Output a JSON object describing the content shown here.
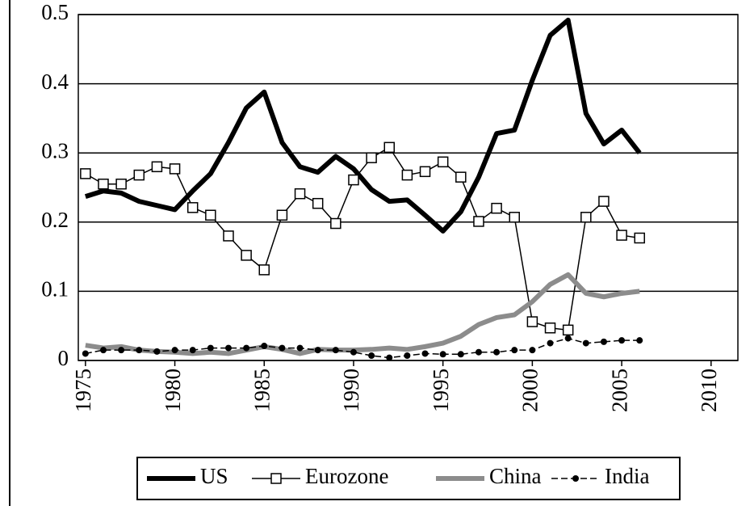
{
  "chart_data": {
    "type": "line",
    "x": [
      1975,
      1976,
      1977,
      1978,
      1979,
      1980,
      1981,
      1982,
      1983,
      1984,
      1985,
      1986,
      1987,
      1988,
      1989,
      1990,
      1991,
      1992,
      1993,
      1994,
      1995,
      1996,
      1997,
      1998,
      1999,
      2000,
      2001,
      2002,
      2003,
      2004,
      2005,
      2006
    ],
    "series": [
      {
        "name": "US",
        "color": "#000000",
        "marker": "none",
        "width": 6,
        "values": [
          0.237,
          0.245,
          0.242,
          0.23,
          0.224,
          0.218,
          0.245,
          0.27,
          0.315,
          0.365,
          0.388,
          0.315,
          0.28,
          0.272,
          0.295,
          0.277,
          0.247,
          0.23,
          0.232,
          0.21,
          0.187,
          0.215,
          0.265,
          0.328,
          0.333,
          0.405,
          0.47,
          0.492,
          0.357,
          0.313,
          0.333,
          0.3
        ]
      },
      {
        "name": "Eurozone",
        "color": "#000000",
        "marker": "square",
        "width": 1.5,
        "values": [
          0.27,
          0.255,
          0.255,
          0.268,
          0.28,
          0.277,
          0.221,
          0.21,
          0.18,
          0.152,
          0.131,
          0.21,
          0.241,
          0.227,
          0.198,
          0.261,
          0.293,
          0.308,
          0.268,
          0.273,
          0.287,
          0.265,
          0.201,
          0.22,
          0.207,
          0.056,
          0.047,
          0.044,
          0.207,
          0.23,
          0.181,
          0.177
        ]
      },
      {
        "name": "China",
        "color": "#8c8c8c",
        "marker": "none",
        "width": 6,
        "values": [
          0.022,
          0.018,
          0.02,
          0.015,
          0.013,
          0.012,
          0.01,
          0.012,
          0.01,
          0.015,
          0.02,
          0.016,
          0.01,
          0.016,
          0.015,
          0.015,
          0.016,
          0.018,
          0.016,
          0.02,
          0.025,
          0.035,
          0.052,
          0.062,
          0.066,
          0.085,
          0.11,
          0.124,
          0.097,
          0.092,
          0.097,
          0.1
        ]
      },
      {
        "name": "India",
        "color": "#000000",
        "marker": "dot",
        "width": 1.5,
        "dash": "8 4",
        "values": [
          0.01,
          0.015,
          0.015,
          0.015,
          0.013,
          0.015,
          0.015,
          0.018,
          0.018,
          0.018,
          0.021,
          0.018,
          0.018,
          0.015,
          0.015,
          0.012,
          0.007,
          0.004,
          0.007,
          0.01,
          0.009,
          0.009,
          0.012,
          0.012,
          0.015,
          0.015,
          0.025,
          0.032,
          0.025,
          0.027,
          0.029,
          0.029
        ]
      }
    ],
    "xlim": [
      1974.6,
      2011.5
    ],
    "xticks": [
      1975,
      1980,
      1985,
      1990,
      1995,
      2000,
      2005,
      2010
    ],
    "ylim": [
      0,
      0.5
    ],
    "yticks": [
      0,
      0.1,
      0.2,
      0.3,
      0.4,
      0.5
    ],
    "grid": true,
    "legend": "bottom"
  }
}
